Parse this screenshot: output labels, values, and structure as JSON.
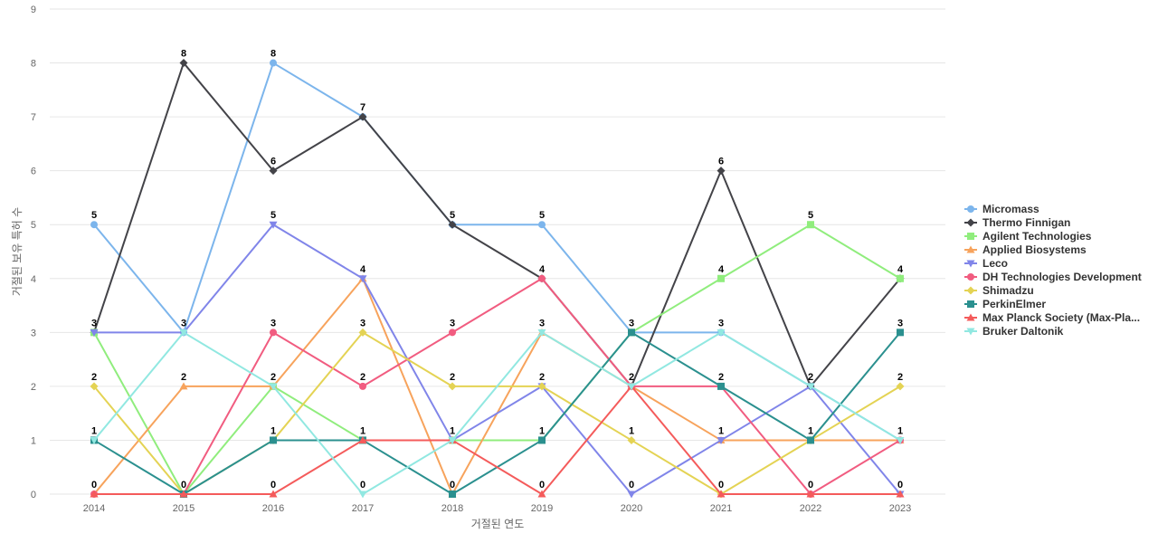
{
  "chart_data": {
    "type": "line",
    "x": [
      "2014",
      "2015",
      "2016",
      "2017",
      "2018",
      "2019",
      "2020",
      "2021",
      "2022",
      "2023"
    ],
    "xlabel": "거절된 연도",
    "ylabel": "거절된 보유 특허 수",
    "ylim": [
      0,
      9
    ],
    "yticks": [
      0,
      1,
      2,
      3,
      4,
      5,
      6,
      7,
      8,
      9
    ],
    "grid": true,
    "legend_position": "right",
    "series": [
      {
        "name": "Micromass",
        "color": "#7cb5ec",
        "marker": "circle",
        "values": [
          5,
          3,
          8,
          7,
          5,
          5,
          3,
          3,
          2,
          1
        ]
      },
      {
        "name": "Thermo Finnigan",
        "color": "#434348",
        "marker": "diamond",
        "values": [
          3,
          8,
          6,
          7,
          5,
          4,
          2,
          6,
          2,
          4
        ]
      },
      {
        "name": "Agilent Technologies",
        "color": "#90ed7d",
        "marker": "square",
        "values": [
          3,
          0,
          2,
          1,
          1,
          1,
          3,
          4,
          5,
          4
        ]
      },
      {
        "name": "Applied Biosystems",
        "color": "#f7a35c",
        "marker": "triangle",
        "values": [
          0,
          2,
          2,
          4,
          0,
          3,
          2,
          1,
          1,
          1
        ]
      },
      {
        "name": "Leco",
        "color": "#8085e9",
        "marker": "triangle-down",
        "values": [
          3,
          3,
          5,
          4,
          1,
          2,
          0,
          1,
          2,
          0
        ]
      },
      {
        "name": "DH Technologies Development",
        "color": "#f15c80",
        "marker": "circle",
        "values": [
          0,
          0,
          3,
          2,
          3,
          4,
          2,
          2,
          0,
          1
        ]
      },
      {
        "name": "Shimadzu",
        "color": "#e4d354",
        "marker": "diamond",
        "values": [
          2,
          0,
          1,
          3,
          2,
          2,
          1,
          0,
          1,
          2
        ]
      },
      {
        "name": "PerkinElmer",
        "color": "#2b908f",
        "marker": "square",
        "values": [
          1,
          0,
          1,
          1,
          0,
          1,
          3,
          2,
          1,
          3
        ]
      },
      {
        "name": "Max Planck Society (Max-Pla...",
        "color": "#f45b5b",
        "marker": "triangle",
        "values": [
          0,
          0,
          0,
          1,
          1,
          0,
          2,
          0,
          0,
          0
        ]
      },
      {
        "name": "Bruker Daltonik",
        "color": "#91e8e1",
        "marker": "triangle-down",
        "values": [
          1,
          3,
          2,
          0,
          1,
          3,
          2,
          3,
          2,
          1
        ]
      }
    ],
    "data_labels": [
      {
        "x": "2014",
        "value": 5
      },
      {
        "x": "2014",
        "value": 3
      },
      {
        "x": "2014",
        "value": 2
      },
      {
        "x": "2014",
        "value": 1
      },
      {
        "x": "2014",
        "value": 0
      },
      {
        "x": "2015",
        "value": 8
      },
      {
        "x": "2015",
        "value": 3
      },
      {
        "x": "2015",
        "value": 2
      },
      {
        "x": "2015",
        "value": 0
      },
      {
        "x": "2016",
        "value": 8
      },
      {
        "x": "2016",
        "value": 6
      },
      {
        "x": "2016",
        "value": 5
      },
      {
        "x": "2016",
        "value": 3
      },
      {
        "x": "2016",
        "value": 2
      },
      {
        "x": "2016",
        "value": 1
      },
      {
        "x": "2016",
        "value": 0
      },
      {
        "x": "2017",
        "value": 7
      },
      {
        "x": "2017",
        "value": 4
      },
      {
        "x": "2017",
        "value": 3
      },
      {
        "x": "2017",
        "value": 2
      },
      {
        "x": "2017",
        "value": 1
      },
      {
        "x": "2017",
        "value": 0
      },
      {
        "x": "2018",
        "value": 5
      },
      {
        "x": "2018",
        "value": 3
      },
      {
        "x": "2018",
        "value": 2
      },
      {
        "x": "2018",
        "value": 1
      },
      {
        "x": "2018",
        "value": 0
      },
      {
        "x": "2019",
        "value": 5
      },
      {
        "x": "2019",
        "value": 4
      },
      {
        "x": "2019",
        "value": 3
      },
      {
        "x": "2019",
        "value": 2
      },
      {
        "x": "2019",
        "value": 1
      },
      {
        "x": "2019",
        "value": 0
      },
      {
        "x": "2020",
        "value": 3
      },
      {
        "x": "2020",
        "value": 2
      },
      {
        "x": "2020",
        "value": 1
      },
      {
        "x": "2020",
        "value": 0
      },
      {
        "x": "2021",
        "value": 6
      },
      {
        "x": "2021",
        "value": 4
      },
      {
        "x": "2021",
        "value": 3
      },
      {
        "x": "2021",
        "value": 2
      },
      {
        "x": "2021",
        "value": 1
      },
      {
        "x": "2021",
        "value": 0
      },
      {
        "x": "2022",
        "value": 5
      },
      {
        "x": "2022",
        "value": 2
      },
      {
        "x": "2022",
        "value": 1
      },
      {
        "x": "2022",
        "value": 0
      },
      {
        "x": "2023",
        "value": 4
      },
      {
        "x": "2023",
        "value": 3
      },
      {
        "x": "2023",
        "value": 2
      },
      {
        "x": "2023",
        "value": 1
      },
      {
        "x": "2023",
        "value": 0
      }
    ]
  }
}
